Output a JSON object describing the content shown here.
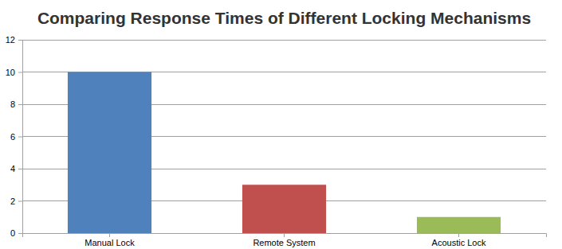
{
  "chart_data": {
    "type": "bar",
    "title": "Comparing Response Times of Different Locking Mechanisms",
    "categories": [
      "Manual Lock",
      "Remote System",
      "Acoustic Lock"
    ],
    "values": [
      10,
      3,
      1
    ],
    "colors": [
      "#4f81bc",
      "#c0504e",
      "#9bbb58"
    ],
    "ylim": [
      0,
      12
    ],
    "yticks": [
      0,
      2,
      4,
      6,
      8,
      10,
      12
    ],
    "grid": true
  }
}
